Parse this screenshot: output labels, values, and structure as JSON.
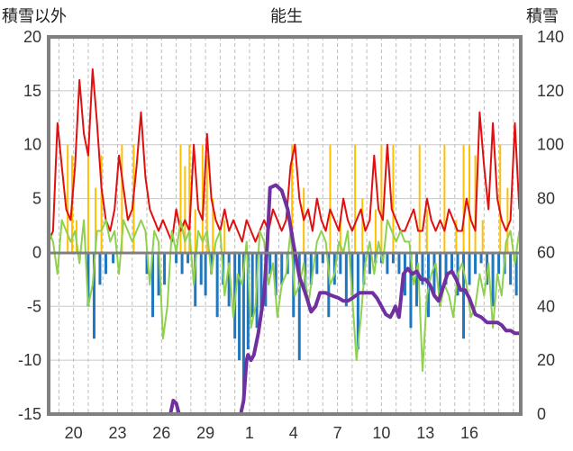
{
  "chart_data": {
    "type": "line",
    "title": "能生",
    "ylabel_left": "積雪以外",
    "ylabel_right": "積雪",
    "ylim_left": [
      -15,
      20
    ],
    "ylim_right": [
      0,
      140
    ],
    "yticks_left": [
      "-15",
      "-10",
      "-5",
      "0",
      "5",
      "10",
      "15",
      "20"
    ],
    "yticks_right": [
      "0",
      "20",
      "40",
      "60",
      "80",
      "100",
      "120",
      "140"
    ],
    "xlim": [
      18.3,
      50.5
    ],
    "xtick_labels": [
      "20",
      "23",
      "26",
      "29",
      "1",
      "4",
      "7",
      "10",
      "13",
      "16"
    ],
    "xtick_positions": [
      20,
      23,
      26,
      29,
      32,
      35,
      38,
      41,
      44,
      47
    ],
    "grid": true,
    "colors": {
      "red": "#e01010",
      "green": "#8fd14f",
      "orange": "#ffc000",
      "blue": "#1f77c0",
      "purple": "#7030a0",
      "frame": "#808080"
    },
    "series": [
      {
        "color_key": "red",
        "axis": "left",
        "x": [
          18.3,
          18.6,
          18.9,
          19.2,
          19.5,
          19.8,
          20.1,
          20.4,
          20.7,
          21.0,
          21.3,
          21.6,
          21.9,
          22.2,
          22.5,
          22.8,
          23.1,
          23.4,
          23.7,
          24.0,
          24.3,
          24.6,
          24.9,
          25.2,
          25.5,
          25.8,
          26.1,
          26.4,
          26.7,
          27.0,
          27.3,
          27.6,
          27.9,
          28.2,
          28.5,
          28.8,
          29.1,
          29.4,
          29.7,
          30.0,
          30.3,
          30.6,
          30.9,
          31.2,
          31.5,
          31.8,
          32.1,
          32.4,
          32.7,
          33.0,
          33.3,
          33.6,
          33.9,
          34.2,
          34.5,
          34.8,
          35.1,
          35.4,
          35.7,
          36.0,
          36.3,
          36.6,
          36.9,
          37.2,
          37.5,
          37.8,
          38.1,
          38.4,
          38.7,
          39.0,
          39.3,
          39.6,
          39.9,
          40.2,
          40.5,
          40.8,
          41.1,
          41.4,
          41.7,
          42.0,
          42.3,
          42.6,
          42.9,
          43.2,
          43.5,
          43.8,
          44.1,
          44.4,
          44.7,
          45.0,
          45.3,
          45.6,
          45.9,
          46.2,
          46.5,
          46.8,
          47.1,
          47.4,
          47.7,
          48.0,
          48.3,
          48.6,
          48.9,
          49.2,
          49.5,
          49.8,
          50.1,
          50.4
        ],
        "y": [
          1,
          2,
          12,
          8,
          4,
          3,
          8,
          16,
          11,
          9,
          17,
          12,
          6,
          3,
          2,
          4,
          9,
          6,
          3,
          4,
          8,
          13,
          7,
          4,
          3,
          2,
          3,
          2,
          1,
          4,
          2,
          3,
          2,
          10,
          4,
          3,
          11,
          5,
          3,
          2,
          4,
          2,
          3,
          2,
          1,
          3,
          2,
          1,
          2,
          3,
          2,
          4,
          3,
          2,
          3,
          8,
          10,
          5,
          3,
          4,
          2,
          5,
          3,
          2,
          4,
          3,
          2,
          5,
          3,
          2,
          3,
          4,
          2,
          3,
          9,
          4,
          3,
          10,
          4,
          3,
          2,
          2,
          3,
          4,
          2,
          2,
          5,
          3,
          2,
          3,
          2,
          4,
          3,
          2,
          2,
          5,
          3,
          2,
          13,
          8,
          4,
          12,
          5,
          3,
          2,
          3,
          12,
          4
        ]
      },
      {
        "color_key": "green",
        "axis": "left",
        "x": [
          18.3,
          18.6,
          18.9,
          19.2,
          19.5,
          19.8,
          20.1,
          20.4,
          20.7,
          21.0,
          21.3,
          21.6,
          21.9,
          22.2,
          22.5,
          22.8,
          23.1,
          23.4,
          23.7,
          24.0,
          24.3,
          24.6,
          24.9,
          25.2,
          25.5,
          25.8,
          26.1,
          26.4,
          26.7,
          27.0,
          27.3,
          27.6,
          27.9,
          28.2,
          28.5,
          28.8,
          29.1,
          29.4,
          29.7,
          30.0,
          30.3,
          30.6,
          30.9,
          31.2,
          31.5,
          31.8,
          32.1,
          32.4,
          32.7,
          33.0,
          33.3,
          33.6,
          33.9,
          34.2,
          34.5,
          34.8,
          35.1,
          35.4,
          35.7,
          36.0,
          36.3,
          36.6,
          36.9,
          37.2,
          37.5,
          37.8,
          38.1,
          38.4,
          38.7,
          39.0,
          39.3,
          39.6,
          39.9,
          40.2,
          40.5,
          40.8,
          41.1,
          41.4,
          41.7,
          42.0,
          42.3,
          42.6,
          42.9,
          43.2,
          43.5,
          43.8,
          44.1,
          44.4,
          44.7,
          45.0,
          45.3,
          45.6,
          45.9,
          46.2,
          46.5,
          46.8,
          47.1,
          47.4,
          47.7,
          48.0,
          48.3,
          48.6,
          48.9,
          49.2,
          49.5,
          49.8,
          50.1,
          50.4
        ],
        "y": [
          2,
          1,
          -2,
          3,
          2,
          1,
          2,
          -1,
          3,
          -5,
          -3,
          2,
          2,
          3,
          1,
          2,
          -2,
          3,
          2,
          1,
          2,
          3,
          2,
          -3,
          2,
          1,
          -8,
          -5,
          2,
          0,
          3,
          1,
          2,
          -3,
          2,
          1,
          2,
          -2,
          1,
          2,
          -4,
          -1,
          -6,
          -2,
          -3,
          1,
          -7,
          -5,
          2,
          1,
          -3,
          -1,
          -6,
          -3,
          -2,
          2,
          -4,
          -3,
          -1,
          -5,
          -2,
          1,
          2,
          1,
          -3,
          -2,
          1,
          0,
          2,
          -4,
          -10,
          -6,
          -1,
          1,
          -2,
          1,
          -1,
          3,
          2,
          1,
          2,
          1,
          1,
          -3,
          -1,
          -11,
          -4,
          -2,
          -1,
          -5,
          -3,
          -4,
          -6,
          -2,
          -1,
          -3,
          -6,
          -5,
          -2,
          -4,
          -1,
          -7,
          -2,
          -4,
          1,
          2,
          -1,
          2
        ]
      },
      {
        "color_key": "purple",
        "axis": "right",
        "x": [
          18.3,
          21,
          24,
          26.6,
          26.8,
          27.0,
          27.2,
          29,
          31.4,
          31.6,
          31.8,
          31.9,
          32.1,
          32.3,
          32.6,
          33.0,
          33.2,
          33.4,
          33.8,
          34.2,
          34.6,
          35.0,
          35.4,
          35.8,
          36.2,
          36.5,
          36.8,
          37.2,
          37.6,
          38.1,
          38.4,
          38.7,
          39.0,
          39.5,
          40.0,
          40.4,
          40.7,
          41.0,
          41.3,
          41.6,
          41.8,
          41.95,
          42.2,
          42.5,
          42.8,
          43.1,
          43.4,
          43.7,
          44.0,
          44.3,
          44.6,
          44.9,
          45.2,
          45.5,
          45.8,
          46.1,
          46.4,
          46.7,
          47.0,
          47.4,
          47.8,
          48.2,
          48.6,
          48.9,
          49.2,
          49.5,
          49.8,
          50.1,
          50.4
        ],
        "y": [
          0,
          0,
          0,
          0,
          5,
          4,
          0,
          0,
          0,
          5,
          20,
          22,
          20,
          22,
          30,
          45,
          62,
          84,
          85,
          83,
          76,
          63,
          51,
          45,
          38,
          40,
          45,
          45,
          44,
          43,
          42,
          42,
          43,
          45,
          45,
          45,
          43,
          40,
          37,
          36,
          38,
          40,
          36,
          52,
          54,
          52,
          53,
          50,
          50,
          48,
          44,
          42,
          47,
          52,
          53,
          50,
          46,
          46,
          43,
          37,
          36,
          34,
          34,
          34,
          33,
          31,
          31,
          30,
          30
        ]
      },
      {
        "color_key": "orange",
        "axis": "left",
        "type": "spikes",
        "x": [
          19.6,
          19.9,
          20.2,
          21.0,
          21.5,
          21.9,
          23.3,
          24.1,
          27.3,
          27.6,
          27.9,
          28.3,
          28.8,
          29.1,
          29.5,
          30.3,
          34.9,
          35.7,
          37.5,
          38.2,
          39.2,
          39.7,
          40.6,
          41.0,
          41.8,
          43.6,
          44.1,
          45.3,
          46.1,
          46.6,
          47.0,
          47.4,
          47.9,
          49.1,
          49.6
        ],
        "y": [
          10,
          9,
          3,
          10,
          6,
          9,
          10,
          10,
          10,
          8,
          10,
          4,
          10,
          9,
          5,
          3,
          10,
          6,
          10,
          3,
          10,
          5,
          4,
          10,
          10,
          10,
          4,
          10,
          3,
          10,
          10,
          9,
          3,
          10,
          6
        ]
      },
      {
        "color_key": "blue",
        "axis": "left",
        "type": "bars",
        "x": [
          21.0,
          21.4,
          21.8,
          22.2,
          22.7,
          25.0,
          25.4,
          25.8,
          26.2,
          27.0,
          27.4,
          27.8,
          28.3,
          28.7,
          29.0,
          29.4,
          29.8,
          30.2,
          30.6,
          31.0,
          31.3,
          31.6,
          31.9,
          32.2,
          32.5,
          32.8,
          33.1,
          33.4,
          33.8,
          34.2,
          34.6,
          35.0,
          35.4,
          35.8,
          36.2,
          36.6,
          37.0,
          37.4,
          37.8,
          38.2,
          38.6,
          39.0,
          39.4,
          39.8,
          40.2,
          40.6,
          41.0,
          41.4,
          41.8,
          42.2,
          42.6,
          43.0,
          43.4,
          43.8,
          44.2,
          44.6,
          45.0,
          45.4,
          45.8,
          46.2,
          46.6,
          47.0,
          47.4,
          47.8,
          48.2,
          48.6,
          49.0,
          49.4,
          49.8,
          50.2
        ],
        "y": [
          -5,
          -8,
          -3,
          -2,
          -1,
          -2,
          -6,
          -4,
          -3,
          -1,
          -2,
          -1,
          -5,
          -3,
          -4,
          -2,
          -6,
          -3,
          -5,
          -8,
          -10,
          -14,
          -9,
          -6,
          -7,
          -6,
          -5,
          -2,
          -4,
          -3,
          -2,
          -6,
          -10,
          -4,
          -3,
          -2,
          -1,
          -6,
          -3,
          -2,
          -5,
          -4,
          -9,
          -3,
          -2,
          -1,
          -1,
          -2,
          -1,
          -2,
          -4,
          -7,
          -5,
          -3,
          -6,
          -4,
          -5,
          -3,
          -2,
          -4,
          -8,
          -3,
          -2,
          -1,
          -3,
          -5,
          -2,
          -2,
          -3,
          -4
        ]
      }
    ]
  }
}
